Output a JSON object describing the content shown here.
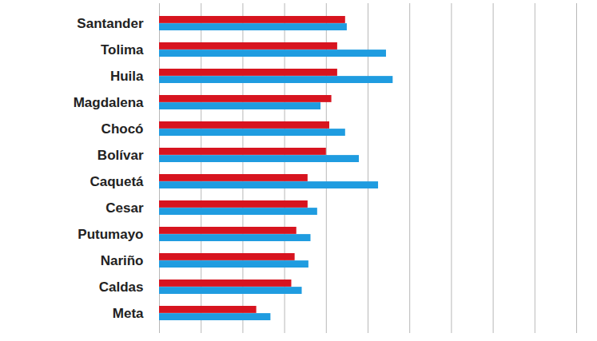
{
  "chart_data": {
    "type": "bar",
    "orientation": "horizontal",
    "categories": [
      "Santander",
      "Tolima",
      "Huila",
      "Magdalena",
      "Chocó",
      "Bolívar",
      "Caquetá",
      "Cesar",
      "Putumayo",
      "Nariño",
      "Caldas",
      "Meta"
    ],
    "series": [
      {
        "color": "#d7141f",
        "values": [
          4.46,
          4.27,
          4.27,
          4.13,
          4.08,
          4.0,
          3.56,
          3.56,
          3.29,
          3.25,
          3.17,
          2.33
        ]
      },
      {
        "color": "#1f9ce0",
        "values": [
          4.5,
          5.44,
          5.6,
          3.87,
          4.46,
          4.79,
          5.25,
          3.79,
          3.63,
          3.58,
          3.42,
          2.67
        ]
      }
    ],
    "xlim": [
      0,
      10
    ],
    "xticks": [
      0,
      1,
      2,
      3,
      4,
      5,
      6,
      7,
      8,
      9,
      10
    ],
    "grid": true,
    "tick_labels": "y"
  }
}
